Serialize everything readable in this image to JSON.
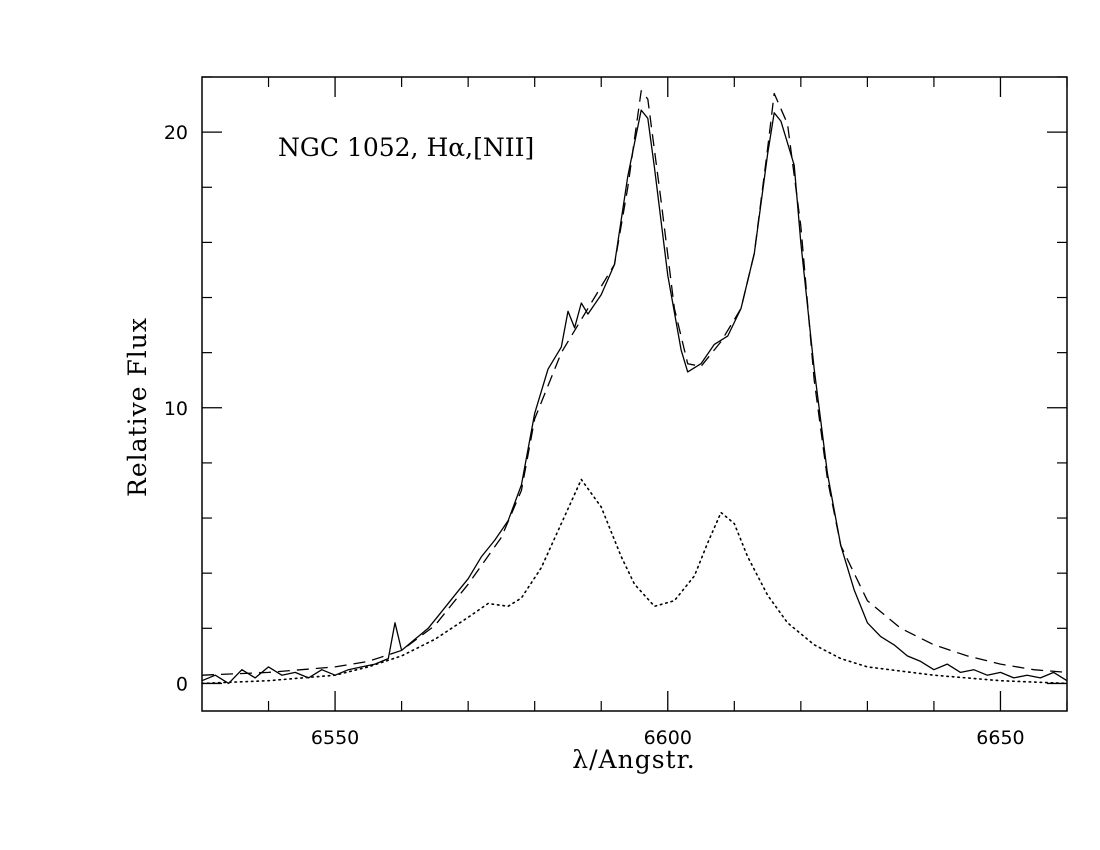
{
  "chart_data": {
    "type": "line",
    "annotation": "NGC  1052,  Hα,[NII]",
    "xlabel": "λ/Angstr.",
    "ylabel": "Relative  Flux",
    "xlim": [
      6530,
      6660
    ],
    "ylim": [
      -1,
      22
    ],
    "x_ticks": [
      {
        "value": 6550,
        "label": "6550"
      },
      {
        "value": 6600,
        "label": "6600"
      },
      {
        "value": 6650,
        "label": "6650"
      }
    ],
    "y_ticks": [
      {
        "value": 0,
        "label": "0"
      },
      {
        "value": 10,
        "label": "10"
      },
      {
        "value": 20,
        "label": "20"
      }
    ],
    "series": [
      {
        "style": "solid",
        "points": [
          [
            6530,
            0.1
          ],
          [
            6532,
            0.3
          ],
          [
            6534,
            0.0
          ],
          [
            6536,
            0.5
          ],
          [
            6538,
            0.2
          ],
          [
            6540,
            0.6
          ],
          [
            6542,
            0.3
          ],
          [
            6544,
            0.4
          ],
          [
            6546,
            0.2
          ],
          [
            6548,
            0.5
          ],
          [
            6550,
            0.3
          ],
          [
            6552,
            0.5
          ],
          [
            6554,
            0.6
          ],
          [
            6556,
            0.7
          ],
          [
            6558,
            0.9
          ],
          [
            6559,
            2.2
          ],
          [
            6560,
            1.2
          ],
          [
            6562,
            1.6
          ],
          [
            6564,
            2.0
          ],
          [
            6566,
            2.6
          ],
          [
            6568,
            3.2
          ],
          [
            6570,
            3.8
          ],
          [
            6572,
            4.6
          ],
          [
            6574,
            5.2
          ],
          [
            6576,
            5.9
          ],
          [
            6578,
            7.2
          ],
          [
            6580,
            9.8
          ],
          [
            6582,
            11.4
          ],
          [
            6584,
            12.2
          ],
          [
            6585,
            13.5
          ],
          [
            6586,
            12.9
          ],
          [
            6587,
            13.8
          ],
          [
            6588,
            13.4
          ],
          [
            6590,
            14.1
          ],
          [
            6592,
            15.2
          ],
          [
            6594,
            18.4
          ],
          [
            6596,
            20.8
          ],
          [
            6597,
            20.5
          ],
          [
            6598,
            18.7
          ],
          [
            6600,
            14.8
          ],
          [
            6602,
            12.1
          ],
          [
            6603,
            11.3
          ],
          [
            6605,
            11.6
          ],
          [
            6607,
            12.3
          ],
          [
            6609,
            12.6
          ],
          [
            6611,
            13.6
          ],
          [
            6613,
            15.6
          ],
          [
            6615,
            19.2
          ],
          [
            6616,
            20.7
          ],
          [
            6617,
            20.4
          ],
          [
            6619,
            18.8
          ],
          [
            6620,
            16.0
          ],
          [
            6622,
            11.4
          ],
          [
            6624,
            7.6
          ],
          [
            6626,
            5.0
          ],
          [
            6628,
            3.4
          ],
          [
            6630,
            2.2
          ],
          [
            6632,
            1.7
          ],
          [
            6634,
            1.4
          ],
          [
            6636,
            1.0
          ],
          [
            6638,
            0.8
          ],
          [
            6640,
            0.5
          ],
          [
            6642,
            0.7
          ],
          [
            6644,
            0.4
          ],
          [
            6646,
            0.5
          ],
          [
            6648,
            0.3
          ],
          [
            6650,
            0.4
          ],
          [
            6652,
            0.2
          ],
          [
            6654,
            0.3
          ],
          [
            6656,
            0.2
          ],
          [
            6658,
            0.4
          ],
          [
            6660,
            0.1
          ]
        ]
      },
      {
        "style": "dashed",
        "points": [
          [
            6530,
            0.3
          ],
          [
            6540,
            0.4
          ],
          [
            6550,
            0.6
          ],
          [
            6555,
            0.8
          ],
          [
            6560,
            1.2
          ],
          [
            6565,
            2.1
          ],
          [
            6570,
            3.6
          ],
          [
            6575,
            5.3
          ],
          [
            6578,
            7.0
          ],
          [
            6580,
            9.6
          ],
          [
            6584,
            12.0
          ],
          [
            6588,
            13.6
          ],
          [
            6592,
            15.2
          ],
          [
            6594,
            18.0
          ],
          [
            6596,
            21.5
          ],
          [
            6597,
            21.2
          ],
          [
            6599,
            17.5
          ],
          [
            6601,
            13.6
          ],
          [
            6603,
            11.6
          ],
          [
            6605,
            11.5
          ],
          [
            6608,
            12.4
          ],
          [
            6611,
            13.6
          ],
          [
            6613,
            15.6
          ],
          [
            6615,
            19.4
          ],
          [
            6616,
            21.4
          ],
          [
            6618,
            20.3
          ],
          [
            6620,
            16.6
          ],
          [
            6622,
            11.0
          ],
          [
            6624,
            7.4
          ],
          [
            6626,
            5.0
          ],
          [
            6630,
            3.0
          ],
          [
            6635,
            2.0
          ],
          [
            6640,
            1.4
          ],
          [
            6645,
            1.0
          ],
          [
            6650,
            0.7
          ],
          [
            6655,
            0.5
          ],
          [
            6660,
            0.4
          ]
        ]
      },
      {
        "style": "dotted",
        "points": [
          [
            6530,
            0.0
          ],
          [
            6540,
            0.1
          ],
          [
            6550,
            0.3
          ],
          [
            6555,
            0.6
          ],
          [
            6560,
            1.0
          ],
          [
            6565,
            1.6
          ],
          [
            6570,
            2.4
          ],
          [
            6573,
            2.9
          ],
          [
            6576,
            2.8
          ],
          [
            6578,
            3.1
          ],
          [
            6581,
            4.2
          ],
          [
            6584,
            5.8
          ],
          [
            6587,
            7.4
          ],
          [
            6590,
            6.4
          ],
          [
            6593,
            4.6
          ],
          [
            6595,
            3.6
          ],
          [
            6598,
            2.8
          ],
          [
            6601,
            3.0
          ],
          [
            6604,
            3.9
          ],
          [
            6606,
            5.1
          ],
          [
            6608,
            6.2
          ],
          [
            6610,
            5.8
          ],
          [
            6612,
            4.6
          ],
          [
            6615,
            3.2
          ],
          [
            6618,
            2.2
          ],
          [
            6622,
            1.4
          ],
          [
            6626,
            0.9
          ],
          [
            6630,
            0.6
          ],
          [
            6640,
            0.3
          ],
          [
            6650,
            0.1
          ],
          [
            6660,
            0.0
          ]
        ]
      }
    ]
  }
}
